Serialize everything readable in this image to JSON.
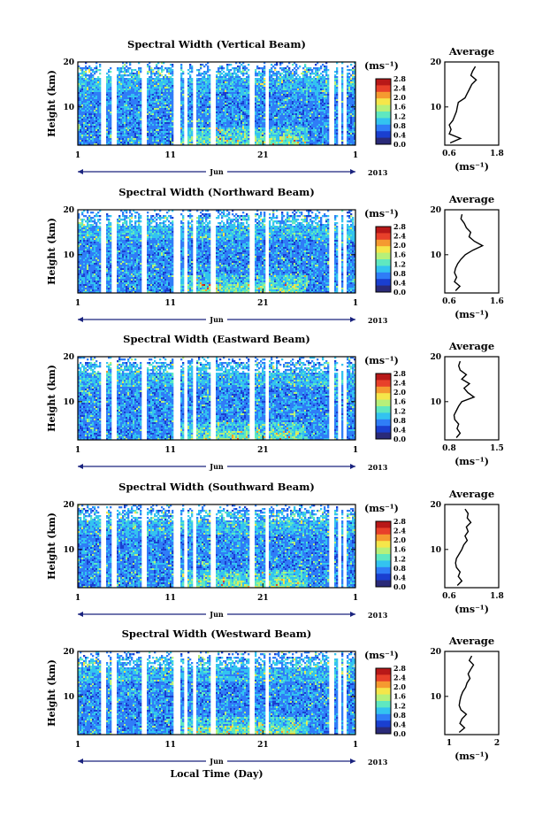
{
  "figure": {
    "xlabel": "Local Time (Day)",
    "ylabel": "Height (km)",
    "month_label": "Jun",
    "year_label": "2013",
    "x_tick_labels": [
      "1",
      "11",
      "21",
      "1"
    ],
    "y_tick_labels": [
      "10",
      "20"
    ],
    "avg_title": "Average",
    "unit_label": "(ms⁻¹)",
    "avg_xlabel": "(ms⁻¹)",
    "colorbar_ticks": [
      "0.0",
      "0.4",
      "0.8",
      "1.2",
      "1.6",
      "2.0",
      "2.4",
      "2.8"
    ],
    "colormap": [
      "#2a2a78",
      "#1a3fd0",
      "#2f7df7",
      "#33c3f0",
      "#5fe8c0",
      "#b6f07a",
      "#f5e64a",
      "#f59a30",
      "#e8402a",
      "#b81818"
    ]
  },
  "chart_data": [
    {
      "type": "heatmap",
      "title": "Spectral Width (Vertical Beam)",
      "xlabel": "Local Time (Day)",
      "ylabel": "Height (km)",
      "xlim": [
        "2013-06-01",
        "2013-07-01"
      ],
      "ylim": [
        1.5,
        20
      ],
      "colorbar": {
        "label": "(ms⁻¹)",
        "range": [
          0.0,
          2.8
        ]
      },
      "average_profile": {
        "xlim": [
          0.6,
          1.8
        ],
        "x_ticks": [
          "0.6",
          "1.8"
        ],
        "height": [
          2,
          3,
          4,
          5,
          6,
          7,
          8,
          9,
          10,
          11,
          12,
          13,
          14,
          15,
          16,
          17,
          18,
          19
        ],
        "width": [
          0.72,
          0.95,
          0.7,
          0.74,
          0.7,
          0.78,
          0.82,
          0.86,
          0.88,
          0.9,
          1.05,
          1.1,
          1.15,
          1.2,
          1.3,
          1.18,
          1.22,
          1.28
        ]
      }
    },
    {
      "type": "heatmap",
      "title": "Spectral Width (Northward Beam)",
      "xlabel": "Local Time (Day)",
      "ylabel": "Height (km)",
      "xlim": [
        "2013-06-01",
        "2013-07-01"
      ],
      "ylim": [
        1.5,
        20
      ],
      "colorbar": {
        "label": "(ms⁻¹)",
        "range": [
          0.0,
          2.8
        ]
      },
      "average_profile": {
        "xlim": [
          0.6,
          1.6
        ],
        "x_ticks": [
          "0.6",
          "1.6"
        ],
        "height": [
          2,
          3,
          4,
          5,
          6,
          7,
          8,
          9,
          10,
          11,
          12,
          13,
          14,
          15,
          16,
          17,
          18,
          19
        ],
        "width": [
          0.8,
          0.88,
          0.78,
          0.82,
          0.78,
          0.8,
          0.84,
          0.9,
          0.98,
          1.12,
          1.3,
          1.15,
          1.05,
          1.08,
          1.0,
          0.96,
          0.9,
          0.92
        ]
      }
    },
    {
      "type": "heatmap",
      "title": "Spectral Width (Eastward Beam)",
      "xlabel": "Local Time (Day)",
      "ylabel": "Height (km)",
      "xlim": [
        "2013-06-01",
        "2013-07-01"
      ],
      "ylim": [
        1.5,
        20
      ],
      "colorbar": {
        "label": "(ms⁻¹)",
        "range": [
          0.0,
          2.8
        ]
      },
      "average_profile": {
        "xlim": [
          0.8,
          1.5
        ],
        "x_ticks": [
          "0.8",
          "1.5"
        ],
        "height": [
          2,
          3,
          4,
          5,
          6,
          7,
          8,
          9,
          10,
          11,
          12,
          13,
          14,
          15,
          16,
          17,
          18,
          19
        ],
        "width": [
          0.95,
          1.0,
          0.96,
          0.98,
          0.93,
          0.92,
          0.95,
          0.98,
          1.02,
          1.18,
          1.1,
          1.05,
          1.12,
          1.02,
          1.08,
          1.0,
          0.98,
          1.0
        ]
      }
    },
    {
      "type": "heatmap",
      "title": "Spectral Width (Southward Beam)",
      "xlabel": "Local Time (Day)",
      "ylabel": "Height (km)",
      "xlim": [
        "2013-06-01",
        "2013-07-01"
      ],
      "ylim": [
        1.5,
        20
      ],
      "colorbar": {
        "label": "(ms⁻¹)",
        "range": [
          0.0,
          2.8
        ]
      },
      "average_profile": {
        "xlim": [
          0.6,
          1.8
        ],
        "x_ticks": [
          "0.6",
          "1.8"
        ],
        "height": [
          2,
          3,
          4,
          5,
          6,
          7,
          8,
          9,
          10,
          11,
          12,
          13,
          14,
          15,
          16,
          17,
          18,
          19
        ],
        "width": [
          0.88,
          0.98,
          0.9,
          0.94,
          0.86,
          0.84,
          0.86,
          0.92,
          0.98,
          1.02,
          1.1,
          1.05,
          1.12,
          1.08,
          1.18,
          1.1,
          1.12,
          1.05
        ]
      }
    },
    {
      "type": "heatmap",
      "title": "Spectral Width (Westward Beam)",
      "xlabel": "Local Time (Day)",
      "ylabel": "Height (km)",
      "xlim": [
        "2013-06-01",
        "2013-07-01"
      ],
      "ylim": [
        1.5,
        20
      ],
      "colorbar": {
        "label": "(ms⁻¹)",
        "range": [
          0.0,
          2.8
        ]
      },
      "average_profile": {
        "xlim": [
          0.5,
          2.0
        ],
        "x_ticks": [
          "1",
          "2"
        ],
        "height": [
          2,
          3,
          4,
          5,
          6,
          7,
          8,
          9,
          10,
          11,
          12,
          13,
          14,
          15,
          16,
          17,
          18,
          19
        ],
        "width": [
          0.9,
          1.05,
          0.92,
          0.98,
          1.1,
          0.95,
          0.9,
          0.92,
          0.95,
          1.0,
          1.08,
          1.12,
          1.2,
          1.15,
          1.22,
          1.3,
          1.18,
          1.25
        ]
      }
    }
  ]
}
